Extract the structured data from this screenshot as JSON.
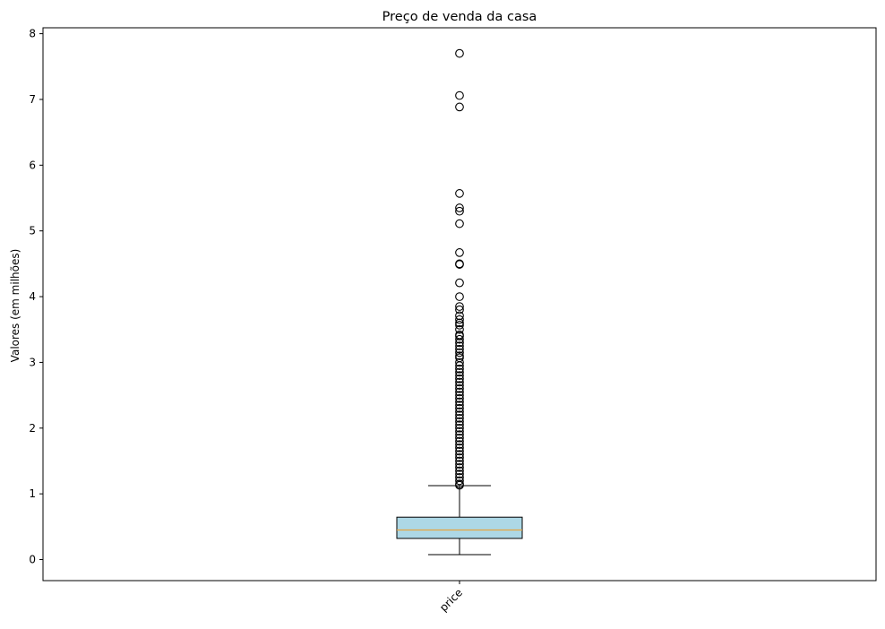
{
  "chart_data": {
    "type": "box",
    "title": "Preço de venda da casa",
    "xlabel": "",
    "ylabel": "Valores (em milhões)",
    "ylim": [
      -0.32,
      8.09
    ],
    "yticks": [
      0,
      1,
      2,
      3,
      4,
      5,
      6,
      7,
      8
    ],
    "ytick_labels": [
      "0",
      "1",
      "2",
      "3",
      "4",
      "5",
      "6",
      "7",
      "8"
    ],
    "grid": false,
    "categories": [
      "price"
    ],
    "colors": {
      "box_fill": "#add8e6",
      "median": "#e8a33d",
      "line": "#000000"
    },
    "boxes": [
      {
        "label": "price",
        "whisker_low": 0.075,
        "q1": 0.322,
        "median": 0.45,
        "q3": 0.645,
        "whisker_high": 1.125,
        "outliers": [
          7.7,
          7.06,
          6.885,
          5.57,
          5.35,
          5.3,
          5.11,
          4.67,
          4.5,
          4.49,
          4.21,
          4.0,
          3.85,
          3.8,
          3.71,
          3.65,
          3.6,
          3.567,
          3.5,
          3.42,
          3.4,
          3.35,
          3.3,
          3.25,
          3.2,
          3.15,
          3.1,
          3.07,
          3.0,
          2.95,
          2.9,
          2.85,
          2.8,
          2.75,
          2.7,
          2.65,
          2.6,
          2.55,
          2.5,
          2.45,
          2.4,
          2.35,
          2.3,
          2.25,
          2.2,
          2.15,
          2.1,
          2.05,
          2.0,
          1.95,
          1.9,
          1.85,
          1.8,
          1.75,
          1.7,
          1.65,
          1.6,
          1.55,
          1.5,
          1.45,
          1.4,
          1.35,
          1.3,
          1.25,
          1.2,
          1.15,
          1.13
        ]
      }
    ]
  }
}
